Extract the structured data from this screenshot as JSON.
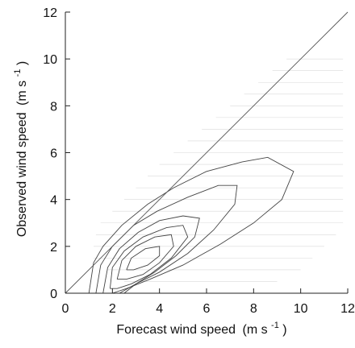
{
  "chart_data": {
    "type": "line",
    "title": "",
    "xlabel": "Forecast wind speed",
    "xlabel_unit_base": "(m s",
    "xlabel_unit_exp": "-1",
    "xlabel_unit_close": ")",
    "ylabel": "Observed wind speed",
    "ylabel_unit_base": "(m s",
    "ylabel_unit_exp": "-1",
    "ylabel_unit_close": ")",
    "xlim": [
      0,
      12
    ],
    "ylim": [
      0,
      12
    ],
    "x_ticks": [
      "0",
      "2",
      "4",
      "6",
      "8",
      "10",
      "12"
    ],
    "y_ticks": [
      "0",
      "2",
      "4",
      "6",
      "8",
      "10",
      "12"
    ],
    "grid": false,
    "reference_line": {
      "from": [
        0,
        0
      ],
      "to": [
        12,
        12
      ]
    },
    "scatter_bands": {
      "y_levels": [
        0.5,
        1.0,
        1.5,
        2.0,
        2.5,
        3.0,
        3.5,
        4.0,
        4.5,
        5.0,
        5.5,
        6.0,
        6.5,
        7.0,
        7.5,
        8.0,
        8.5,
        9.0,
        9.5,
        10.0
      ],
      "x_start": [
        2.5,
        1.8,
        1.2,
        1.2,
        1.3,
        1.5,
        2.0,
        2.5,
        3.0,
        3.5,
        4.0,
        4.6,
        5.2,
        5.8,
        6.4,
        7.0,
        7.6,
        8.2,
        8.8,
        9.4
      ],
      "x_end": [
        9.0,
        10.0,
        10.5,
        11.0,
        11.5,
        11.8,
        11.8,
        11.8,
        11.8,
        11.8,
        11.8,
        11.8,
        11.8,
        11.8,
        11.8,
        11.8,
        11.8,
        11.8,
        11.8,
        11.8
      ]
    },
    "contours": [
      {
        "points": [
          [
            1.0,
            0.0
          ],
          [
            1.2,
            1.3
          ],
          [
            1.6,
            2.0
          ],
          [
            2.4,
            2.9
          ],
          [
            3.5,
            3.8
          ],
          [
            4.6,
            4.5
          ],
          [
            6.0,
            5.2
          ],
          [
            7.5,
            5.6
          ],
          [
            8.6,
            5.8
          ],
          [
            9.7,
            5.2
          ],
          [
            9.2,
            4.0
          ],
          [
            8.0,
            3.0
          ],
          [
            6.6,
            2.1
          ],
          [
            5.0,
            1.2
          ],
          [
            3.6,
            0.6
          ],
          [
            2.6,
            0.2
          ],
          [
            2.0,
            0.0
          ]
        ]
      },
      {
        "points": [
          [
            1.3,
            0.0
          ],
          [
            1.5,
            1.2
          ],
          [
            2.0,
            2.0
          ],
          [
            2.9,
            2.9
          ],
          [
            3.9,
            3.5
          ],
          [
            5.2,
            4.1
          ],
          [
            6.5,
            4.6
          ],
          [
            7.3,
            4.6
          ],
          [
            7.2,
            3.8
          ],
          [
            6.3,
            2.7
          ],
          [
            5.2,
            1.7
          ],
          [
            4.0,
            0.9
          ],
          [
            3.0,
            0.4
          ],
          [
            2.3,
            0.0
          ]
        ]
      },
      {
        "points": [
          [
            1.6,
            0.0
          ],
          [
            1.8,
            1.1
          ],
          [
            2.3,
            1.9
          ],
          [
            3.1,
            2.6
          ],
          [
            4.0,
            3.1
          ],
          [
            5.0,
            3.3
          ],
          [
            5.7,
            3.2
          ],
          [
            5.5,
            2.4
          ],
          [
            4.7,
            1.6
          ],
          [
            3.8,
            0.9
          ],
          [
            3.0,
            0.4
          ],
          [
            2.5,
            0.0
          ]
        ]
      },
      {
        "points": [
          [
            1.9,
            0.2
          ],
          [
            2.0,
            1.1
          ],
          [
            2.5,
            1.8
          ],
          [
            3.3,
            2.4
          ],
          [
            4.3,
            2.8
          ],
          [
            5.0,
            2.9
          ],
          [
            5.2,
            2.4
          ],
          [
            4.5,
            1.5
          ],
          [
            3.6,
            0.8
          ],
          [
            2.8,
            0.4
          ],
          [
            2.2,
            0.2
          ],
          [
            1.9,
            0.2
          ]
        ]
      },
      {
        "points": [
          [
            2.2,
            0.6
          ],
          [
            2.4,
            1.4
          ],
          [
            3.0,
            2.0
          ],
          [
            3.8,
            2.4
          ],
          [
            4.5,
            2.5
          ],
          [
            4.6,
            2.0
          ],
          [
            4.0,
            1.3
          ],
          [
            3.3,
            0.8
          ],
          [
            2.6,
            0.6
          ],
          [
            2.2,
            0.6
          ]
        ]
      },
      {
        "points": [
          [
            2.6,
            1.0
          ],
          [
            2.8,
            1.5
          ],
          [
            3.4,
            1.9
          ],
          [
            4.0,
            2.0
          ],
          [
            4.0,
            1.6
          ],
          [
            3.5,
            1.2
          ],
          [
            2.9,
            1.0
          ],
          [
            2.6,
            1.0
          ]
        ]
      }
    ]
  }
}
